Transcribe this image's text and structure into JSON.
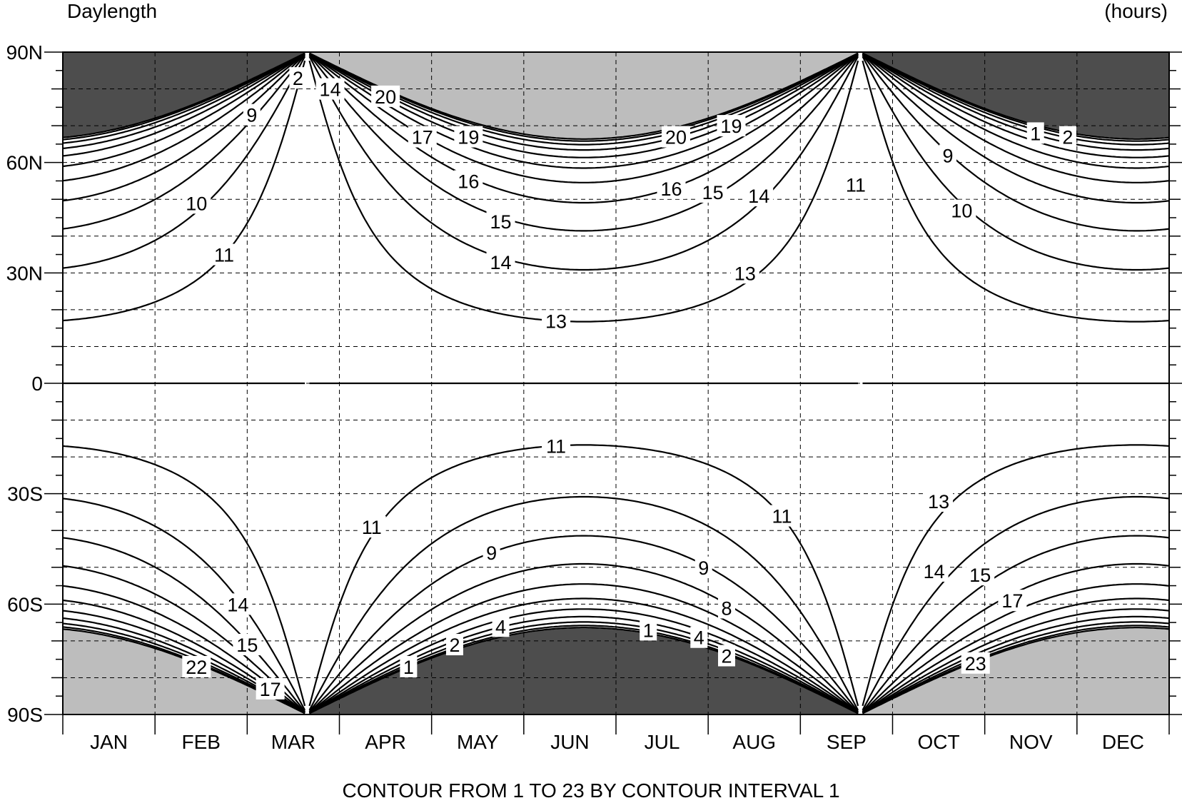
{
  "header": {
    "left_title": "Daylength",
    "right_units": "(hours)"
  },
  "footer": {
    "text": "CONTOUR FROM 1 TO 23 BY CONTOUR INTERVAL 1"
  },
  "chart_data": {
    "type": "contour",
    "title": "Daylength",
    "units": "(hours)",
    "x_axis": {
      "variable": "month",
      "tick_labels": [
        "JAN",
        "FEB",
        "MAR",
        "APR",
        "MAY",
        "JUN",
        "JUL",
        "AUG",
        "SEP",
        "OCT",
        "NOV",
        "DEC"
      ]
    },
    "y_axis": {
      "variable": "latitude_deg",
      "range": [
        -90,
        90
      ],
      "tick_values": [
        90,
        60,
        30,
        0,
        -30,
        -60,
        -90
      ],
      "tick_labels": [
        "90N",
        "60N",
        "30N",
        "0",
        "30S",
        "60S",
        "90S"
      ]
    },
    "contour_levels": {
      "min": 1,
      "max": 23,
      "interval": 1
    },
    "shading": {
      "polar_night": "#4d4d4d",
      "polar_day": "#bdbdbd",
      "other": "#ffffff"
    },
    "grid": true,
    "contour_labels": [
      {
        "text": "2",
        "month": 2.55,
        "lat": 83
      },
      {
        "text": "14",
        "month": 2.9,
        "lat": 80
      },
      {
        "text": "20",
        "month": 3.5,
        "lat": 78
      },
      {
        "text": "9",
        "month": 2.05,
        "lat": 73
      },
      {
        "text": "17",
        "month": 3.9,
        "lat": 67
      },
      {
        "text": "19",
        "month": 4.4,
        "lat": 67
      },
      {
        "text": "20",
        "month": 6.65,
        "lat": 67
      },
      {
        "text": "19",
        "month": 7.25,
        "lat": 70
      },
      {
        "text": "1",
        "month": 10.55,
        "lat": 68
      },
      {
        "text": "2",
        "month": 10.9,
        "lat": 67
      },
      {
        "text": "9",
        "month": 9.6,
        "lat": 62
      },
      {
        "text": "16",
        "month": 4.4,
        "lat": 55
      },
      {
        "text": "16",
        "month": 6.6,
        "lat": 53
      },
      {
        "text": "15",
        "month": 7.05,
        "lat": 52
      },
      {
        "text": "14",
        "month": 7.55,
        "lat": 51
      },
      {
        "text": "11",
        "month": 8.6,
        "lat": 54
      },
      {
        "text": "10",
        "month": 1.45,
        "lat": 49
      },
      {
        "text": "10",
        "month": 9.75,
        "lat": 47
      },
      {
        "text": "15",
        "month": 4.75,
        "lat": 44
      },
      {
        "text": "14",
        "month": 4.75,
        "lat": 33
      },
      {
        "text": "13",
        "month": 7.4,
        "lat": 30
      },
      {
        "text": "11",
        "month": 1.75,
        "lat": 35
      },
      {
        "text": "13",
        "month": 5.35,
        "lat": 17
      },
      {
        "text": "11",
        "month": 5.35,
        "lat": -17
      },
      {
        "text": "11",
        "month": 3.35,
        "lat": -39
      },
      {
        "text": "11",
        "month": 7.8,
        "lat": -36
      },
      {
        "text": "13",
        "month": 9.5,
        "lat": -32
      },
      {
        "text": "9",
        "month": 4.65,
        "lat": -46
      },
      {
        "text": "9",
        "month": 6.95,
        "lat": -50
      },
      {
        "text": "14",
        "month": 1.9,
        "lat": -60
      },
      {
        "text": "14",
        "month": 9.45,
        "lat": -51
      },
      {
        "text": "15",
        "month": 9.95,
        "lat": -52
      },
      {
        "text": "8",
        "month": 7.2,
        "lat": -61
      },
      {
        "text": "17",
        "month": 10.3,
        "lat": -59
      },
      {
        "text": "15",
        "month": 2.0,
        "lat": -71
      },
      {
        "text": "4",
        "month": 4.75,
        "lat": -66
      },
      {
        "text": "1",
        "month": 6.35,
        "lat": -67
      },
      {
        "text": "4",
        "month": 6.9,
        "lat": -69
      },
      {
        "text": "2",
        "month": 4.25,
        "lat": -71
      },
      {
        "text": "2",
        "month": 7.2,
        "lat": -74
      },
      {
        "text": "22",
        "month": 1.45,
        "lat": -77
      },
      {
        "text": "23",
        "month": 9.9,
        "lat": -76
      },
      {
        "text": "1",
        "month": 3.75,
        "lat": -77
      },
      {
        "text": "17",
        "month": 2.25,
        "lat": -83
      }
    ]
  }
}
